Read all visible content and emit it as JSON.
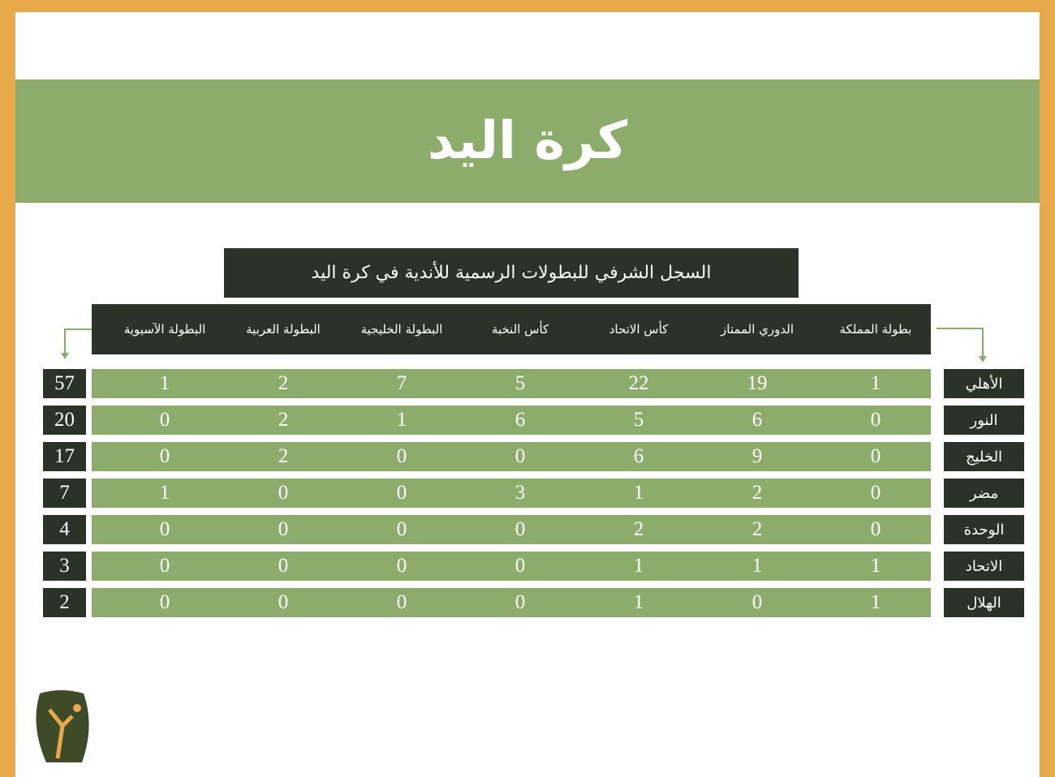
{
  "header": {
    "title": "كرة اليد"
  },
  "table": {
    "caption": "السجل الشرفي للبطولات الرسمية للأندية في كرة اليد",
    "columns": [
      "بطولة المملكة",
      "الدوري الممتاز",
      "كأس الاتحاد",
      "كأس النخبة",
      "البطولة الخليجية",
      "البطولة العربية",
      "البطولة الآسيوية"
    ],
    "rows": [
      {
        "team": "الأهلي",
        "values": [
          1,
          19,
          22,
          5,
          7,
          2,
          1
        ],
        "total": 57
      },
      {
        "team": "النور",
        "values": [
          0,
          6,
          5,
          6,
          1,
          2,
          0
        ],
        "total": 20
      },
      {
        "team": "الخليج",
        "values": [
          0,
          9,
          6,
          0,
          0,
          2,
          0
        ],
        "total": 17
      },
      {
        "team": "مضر",
        "values": [
          0,
          2,
          1,
          3,
          0,
          0,
          1
        ],
        "total": 7
      },
      {
        "team": "الوحدة",
        "values": [
          0,
          2,
          2,
          0,
          0,
          0,
          0
        ],
        "total": 4
      },
      {
        "team": "الاتحاد",
        "values": [
          1,
          1,
          1,
          0,
          0,
          0,
          0
        ],
        "total": 3
      },
      {
        "team": "الهلال",
        "values": [
          1,
          0,
          1,
          0,
          0,
          0,
          0
        ],
        "total": 2
      }
    ]
  }
}
